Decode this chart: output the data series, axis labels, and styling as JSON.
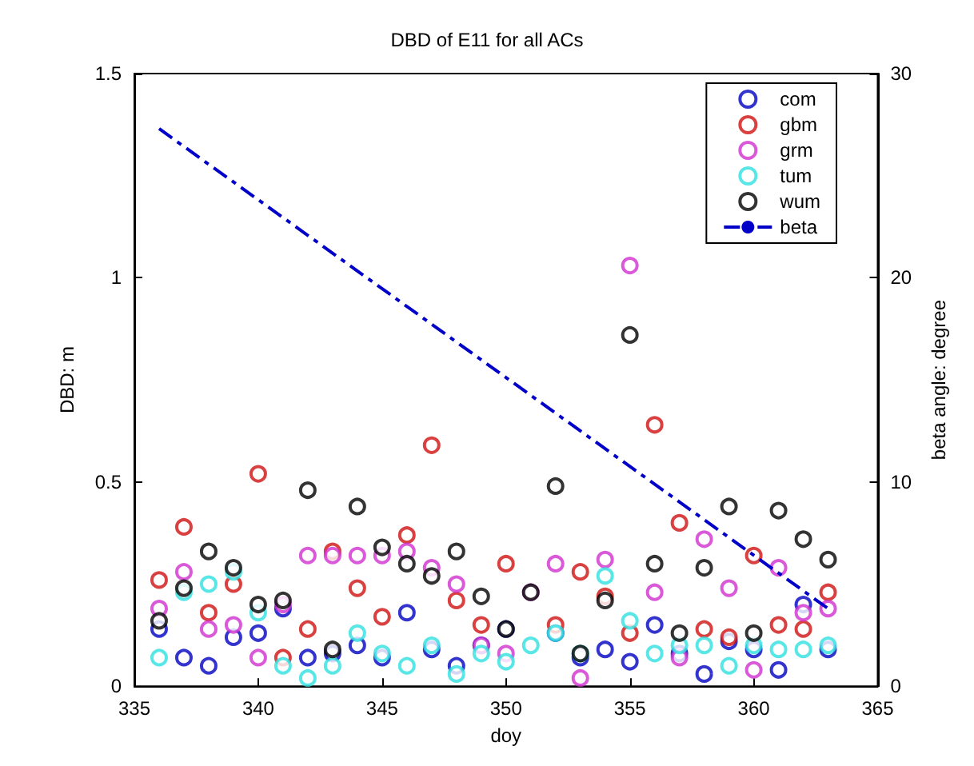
{
  "chart_data": {
    "type": "scatter",
    "title": "DBD of E11 for all ACs",
    "xlabel": "doy",
    "ylabel": "DBD: m",
    "y2label": "beta angle: degree",
    "x": [
      336,
      337,
      338,
      339,
      340,
      341,
      342,
      343,
      344,
      345,
      346,
      347,
      348,
      349,
      350,
      351,
      352,
      353,
      354,
      355,
      356,
      357,
      358,
      359,
      360,
      361,
      362,
      363
    ],
    "series": [
      {
        "name": "com",
        "color": "#0000c0",
        "values": [
          0.14,
          0.07,
          0.05,
          0.12,
          0.13,
          0.19,
          0.07,
          0.08,
          0.1,
          0.07,
          0.18,
          0.09,
          0.05,
          0.1,
          0.14,
          null,
          0.13,
          0.07,
          0.09,
          0.06,
          0.15,
          0.08,
          0.03,
          0.11,
          0.09,
          0.04,
          0.2,
          0.09
        ]
      },
      {
        "name": "gbm",
        "color": "#d01010",
        "values": [
          0.26,
          0.39,
          0.18,
          0.25,
          0.52,
          0.07,
          0.14,
          0.33,
          0.24,
          0.17,
          0.37,
          0.59,
          0.21,
          0.15,
          0.3,
          null,
          0.15,
          0.28,
          0.22,
          0.13,
          0.64,
          0.4,
          0.14,
          0.12,
          0.32,
          0.15,
          0.14,
          0.23
        ]
      },
      {
        "name": "grm",
        "color": "#d030d0",
        "values": [
          0.19,
          0.28,
          0.14,
          0.15,
          0.07,
          0.2,
          0.32,
          0.32,
          0.32,
          0.32,
          0.33,
          0.29,
          0.25,
          0.1,
          0.08,
          0.23,
          0.3,
          0.02,
          0.31,
          1.03,
          0.23,
          0.07,
          0.36,
          0.24,
          0.04,
          0.29,
          0.18,
          0.19
        ]
      },
      {
        "name": "tum",
        "color": "#30e0e0",
        "values": [
          0.07,
          0.23,
          0.25,
          0.28,
          0.18,
          0.05,
          0.02,
          0.05,
          0.13,
          0.08,
          0.05,
          0.1,
          0.03,
          0.08,
          0.06,
          0.1,
          0.13,
          0.08,
          0.27,
          0.16,
          0.08,
          0.1,
          0.1,
          0.05,
          0.1,
          0.09,
          0.09,
          0.1
        ]
      },
      {
        "name": "wum",
        "color": "#000000",
        "values": [
          0.16,
          0.24,
          0.33,
          0.29,
          0.2,
          0.21,
          0.48,
          0.09,
          0.44,
          0.34,
          0.3,
          0.27,
          0.33,
          0.22,
          0.14,
          0.23,
          0.49,
          0.08,
          0.21,
          0.86,
          0.3,
          0.13,
          0.29,
          0.44,
          0.13,
          0.43,
          0.36,
          0.31
        ]
      },
      {
        "name": "beta",
        "type": "line",
        "axis": "y2",
        "color": "#0000c8",
        "line_style": "dashed",
        "marker": "none",
        "x": [
          336,
          363
        ],
        "values": [
          27.3,
          3.8
        ]
      }
    ],
    "xlim": [
      335,
      365
    ],
    "xticks": [
      335,
      340,
      345,
      350,
      355,
      360,
      365
    ],
    "ylim": [
      0,
      1.5
    ],
    "yticks": [
      0,
      0.5,
      1,
      1.5
    ],
    "y2lim": [
      0,
      30
    ],
    "y2ticks": [
      0,
      10,
      20,
      30
    ],
    "marker": "circle",
    "grid": false,
    "legend": "top right"
  }
}
